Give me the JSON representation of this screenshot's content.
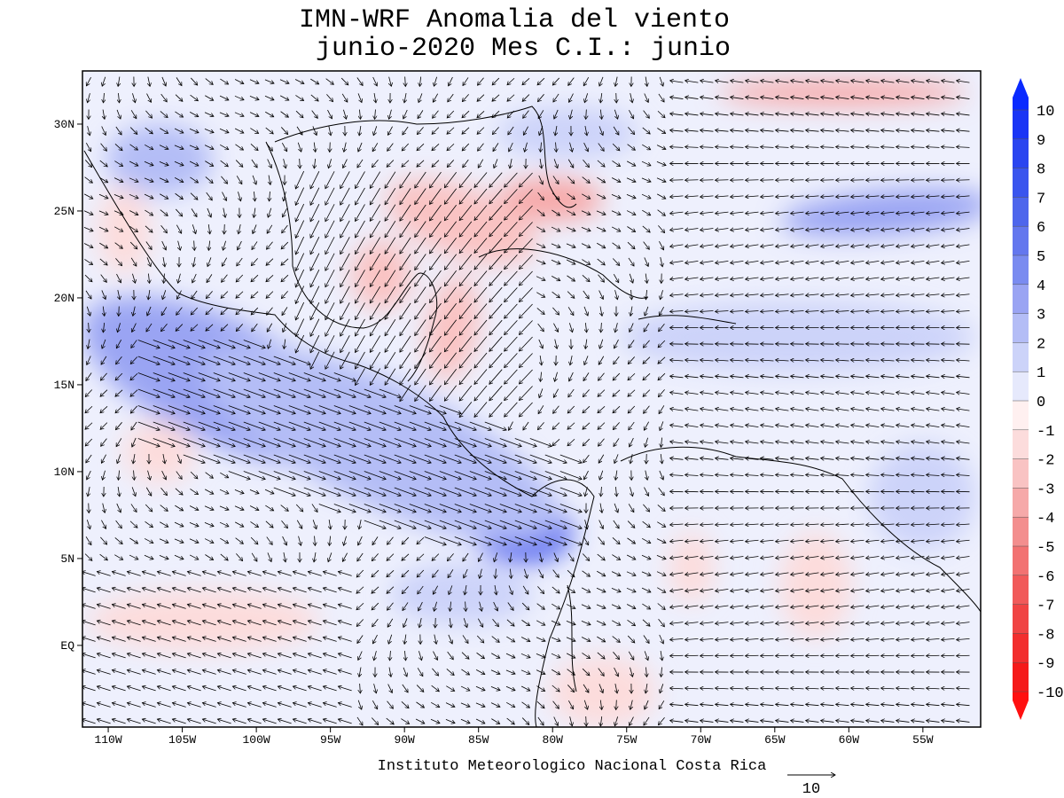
{
  "map": {
    "title": [
      "IMN-WRF Anomalia del viento",
      "junio-2020 Mes C.I.: junio"
    ],
    "xlim": [
      -111.74,
      -51.1
    ],
    "ylim": [
      -4.7,
      33.06
    ],
    "xticks": [
      {
        "value": -110,
        "label": "110W"
      },
      {
        "value": -105,
        "label": "105W"
      },
      {
        "value": -100,
        "label": "100W"
      },
      {
        "value": -95,
        "label": "95W"
      },
      {
        "value": -90,
        "label": "90W"
      },
      {
        "value": -85,
        "label": "85W"
      },
      {
        "value": -80,
        "label": "80W"
      },
      {
        "value": -75,
        "label": "75W"
      },
      {
        "value": -70,
        "label": "70W"
      },
      {
        "value": -65,
        "label": "65W"
      },
      {
        "value": -60,
        "label": "60W"
      },
      {
        "value": -55,
        "label": "55W"
      }
    ],
    "yticks": [
      {
        "value": 30,
        "label": "30N"
      },
      {
        "value": 25,
        "label": "25N"
      },
      {
        "value": 20,
        "label": "20N"
      },
      {
        "value": 15,
        "label": "15N"
      },
      {
        "value": 10,
        "label": "10N"
      },
      {
        "value": 5,
        "label": "5N"
      },
      {
        "value": 0,
        "label": "EQ"
      }
    ],
    "colorbar": {
      "levels": [
        10,
        9,
        8,
        7,
        6,
        5,
        4,
        3,
        2,
        1,
        0,
        -1,
        -2,
        -3,
        -4,
        -5,
        -6,
        -7,
        -8,
        -9,
        -10
      ],
      "colors": [
        "#0a2aff",
        "#1a35f5",
        "#2a45f0",
        "#3a55ee",
        "#4e66ec",
        "#6477ee",
        "#7a8bf0",
        "#9aa4f3",
        "#b4bdf6",
        "#ccd3f9",
        "#e6e9fc",
        "#fff0f0",
        "#fcdcdc",
        "#f9c3c3",
        "#f6a9a9",
        "#f38e8e",
        "#f27272",
        "#f15a5a",
        "#f04444",
        "#f22e2e",
        "#f51a1a",
        "#ff1010"
      ]
    },
    "footer": "Instituto Meteorologico Nacional Costa Rica",
    "vector_reference": 10
  }
}
